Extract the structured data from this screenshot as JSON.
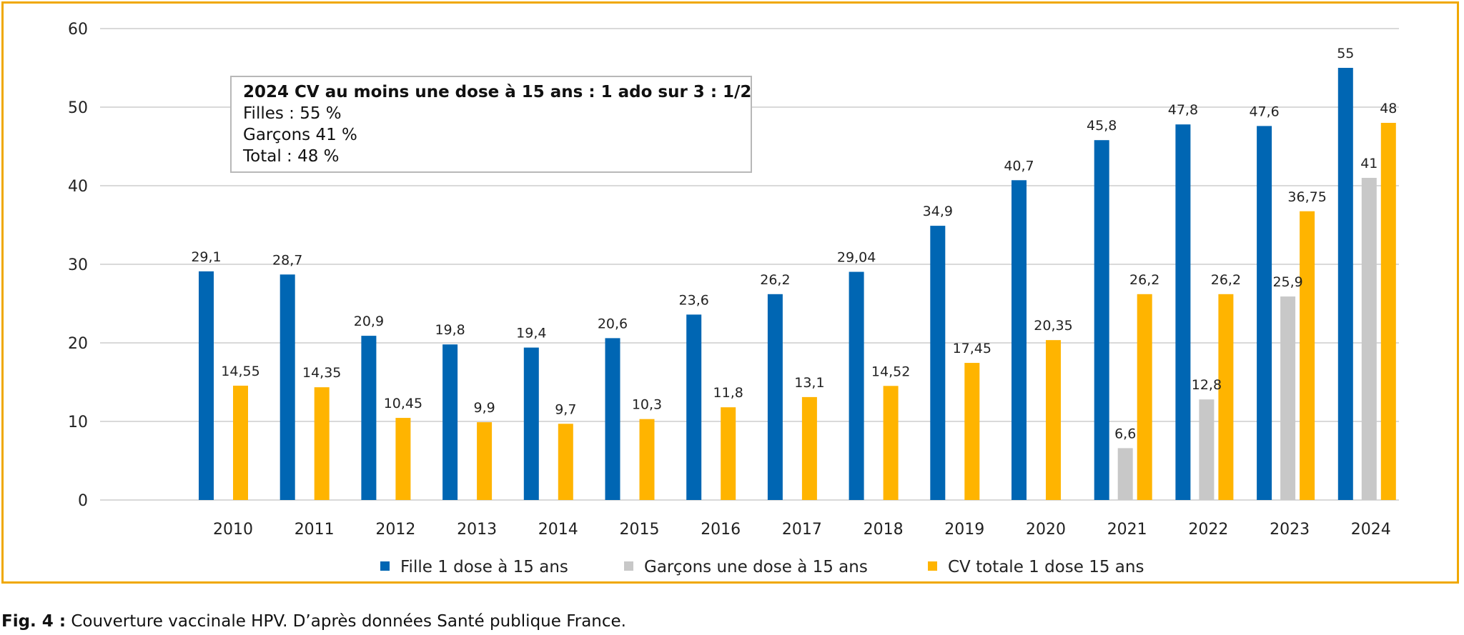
{
  "chart_data": {
    "type": "bar",
    "categories": [
      "2010",
      "2011",
      "2012",
      "2013",
      "2014",
      "2015",
      "2016",
      "2017",
      "2018",
      "2019",
      "2020",
      "2021",
      "2022",
      "2023",
      "2024"
    ],
    "series": [
      {
        "name": "Fille 1 dose à 15 ans",
        "color": "#0066b3",
        "values": [
          29.1,
          28.7,
          20.9,
          19.8,
          19.4,
          20.6,
          23.6,
          26.2,
          29.04,
          34.9,
          40.7,
          45.8,
          47.8,
          47.6,
          55
        ],
        "labels": [
          "29,1",
          "28,7",
          "20,9",
          "19,8",
          "19,4",
          "20,6",
          "23,6",
          "26,2",
          "29,04",
          "34,9",
          "40,7",
          "45,8",
          "47,8",
          "47,6",
          "55"
        ]
      },
      {
        "name": "Garçons une dose à 15 ans",
        "color": "#c8c8c8",
        "values": [
          null,
          null,
          null,
          null,
          null,
          null,
          null,
          null,
          null,
          null,
          null,
          6.6,
          12.8,
          25.9,
          41
        ],
        "labels": [
          null,
          null,
          null,
          null,
          null,
          null,
          null,
          null,
          null,
          null,
          null,
          "6,6",
          "12,8",
          "25,9",
          "41"
        ]
      },
      {
        "name": "CV totale 1 dose 15 ans",
        "color": "#ffb400",
        "values": [
          14.55,
          14.35,
          10.45,
          9.9,
          9.7,
          10.3,
          11.8,
          13.1,
          14.52,
          17.45,
          20.35,
          26.2,
          26.2,
          36.75,
          48
        ],
        "labels": [
          "14,55",
          "14,35",
          "10,45",
          "9,9",
          "9,7",
          "10,3",
          "11,8",
          "13,1",
          "14,52",
          "17,45",
          "20,35",
          "26,2",
          "26,2",
          "36,75",
          "48"
        ]
      }
    ],
    "ylim": [
      0,
      60
    ],
    "yticks": [
      0,
      10,
      20,
      30,
      40,
      50,
      60
    ],
    "grid": true,
    "legend_position": "bottom-center",
    "annotation": {
      "line1": "2024 CV au moins une dose à 15 ans : 1 ado sur 3 : 1/2",
      "line2": "Filles : 55 %",
      "line3": "Garçons 41 %",
      "line4": "Total : 48 %"
    }
  },
  "caption": {
    "prefix": "Fig. 4 :",
    "text": " Couverture vaccinale HPV. D’après données Santé publique France."
  },
  "colors": {
    "frame": "#f0a800",
    "grid": "#d9d9d9"
  }
}
